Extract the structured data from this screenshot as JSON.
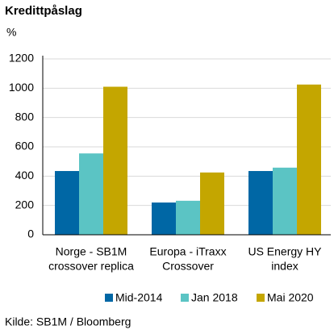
{
  "chart_data": {
    "type": "bar",
    "title": "Kredittpåslag",
    "y_label": "%",
    "categories": [
      [
        "Norge - SB1M",
        "crossover replica"
      ],
      [
        "Europa - iTraxx",
        "Crossover"
      ],
      [
        "US Energy HY",
        "index"
      ]
    ],
    "series": [
      {
        "name": "Mid-2014",
        "color": "#0067a5",
        "values": [
          435,
          220,
          435
        ]
      },
      {
        "name": "Jan 2018",
        "color": "#5bc4c4",
        "values": [
          555,
          232,
          458
        ]
      },
      {
        "name": "Mai 2020",
        "color": "#c4a600",
        "values": [
          1010,
          425,
          1025
        ]
      }
    ],
    "ylim": [
      0,
      1200
    ],
    "yticks": [
      0,
      200,
      400,
      600,
      800,
      1000,
      1200
    ],
    "grid": true,
    "source": "Kilde: SB1M / Bloomberg"
  }
}
